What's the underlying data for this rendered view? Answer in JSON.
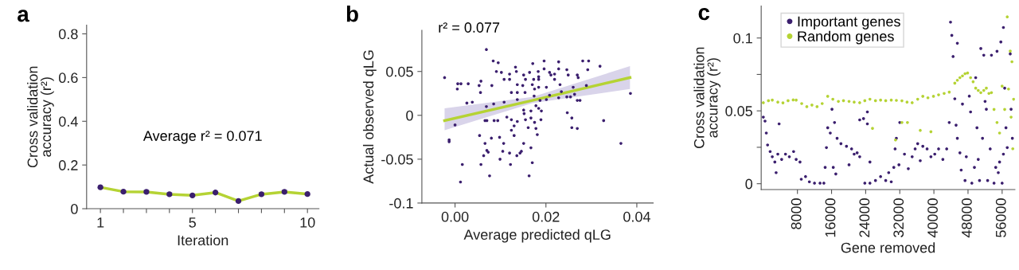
{
  "chart_data": [
    {
      "type": "line",
      "title": "a",
      "xlabel": "Iteration",
      "ylabel": "Cross validation\naccuracy (r²)",
      "annotations": [
        "Average r² = 0.071"
      ],
      "x": [
        1,
        2,
        3,
        4,
        5,
        6,
        7,
        8,
        9,
        10
      ],
      "xlim": [
        0.4,
        10.5
      ],
      "xticks": [
        1,
        {
          "value": 2,
          "label": null
        },
        {
          "value": 3,
          "label": null
        },
        {
          "value": 4,
          "label": null
        },
        5,
        {
          "value": 6,
          "label": null
        },
        {
          "value": 7,
          "label": null
        },
        {
          "value": 8,
          "label": null
        },
        {
          "value": 9,
          "label": null
        },
        10
      ],
      "ylim": [
        0,
        0.84
      ],
      "yticks": [
        0,
        0.2,
        0.4,
        0.6,
        0.8
      ],
      "grid": false,
      "legend": false,
      "series": [
        {
          "color": "#b5d334",
          "marker": "none",
          "values": [
            0.098,
            0.078,
            0.077,
            0.066,
            0.061,
            0.074,
            0.035,
            0.066,
            0.077,
            0.067
          ]
        },
        {
          "type": "scatter",
          "color": "#3b1f6e",
          "marker": "circle",
          "values": [
            0.098,
            0.078,
            0.077,
            0.066,
            0.061,
            0.074,
            0.035,
            0.066,
            0.077,
            0.067
          ]
        }
      ]
    },
    {
      "type": "scatter",
      "title": "b",
      "xlabel": "Average predicted qLG",
      "ylabel": "Actual observed qLG",
      "annotations": [
        "r² = 0.077"
      ],
      "xlim": [
        -0.0073,
        0.0436
      ],
      "xticks": [
        {
          "value": 0,
          "label": "0.00"
        },
        {
          "value": 0.02,
          "label": "0.02"
        },
        {
          "value": 0.04,
          "label": "0.04"
        }
      ],
      "ylim": [
        -0.1,
        0.097
      ],
      "yticks": [
        -0.1,
        -0.05,
        0,
        0.05
      ],
      "grid": false,
      "legend": false,
      "series": [
        {
          "color": "#3b1f6e",
          "marker": "circle",
          "x": [
            -0.0023,
            0.0006,
            0.0005,
            0,
            -0.0013,
            -0.0013,
            0.0016,
            0.0012,
            0.0026,
            0.0038,
            0.0013,
            0.0029,
            0.0053,
            0.0057,
            0.0056,
            0.0069,
            0.0084,
            0.0095,
            0.0069,
            0.0066,
            0.007,
            0.0054,
            0.0066,
            0.007,
            0.0073,
            0.0063,
            0.0057,
            0.0076,
            0.0081,
            0.0085,
            0.0086,
            0.0094,
            0.008,
            0.0098,
            0.0107,
            0.0099,
            0.0105,
            0.0091,
            0.0102,
            0.0108,
            0.012,
            0.0108,
            0.0114,
            0.0122,
            0.0124,
            0.012,
            0.0136,
            0.0143,
            0.0146,
            0.0151,
            0.013,
            0.0124,
            0.013,
            0.0137,
            0.0133,
            0.0135,
            0.012,
            0.0137,
            0.0124,
            0.0137,
            0.0137,
            0.0151,
            0.0155,
            0.0149,
            0.0154,
            0.0151,
            0.0152,
            0.0155,
            0.0161,
            0.0167,
            0.0167,
            0.0167,
            0.017,
            0.0163,
            0.0171,
            0.0164,
            0.0173,
            0.017,
            0.0175,
            0.0174,
            0.0178,
            0.0184,
            0.0175,
            0.0178,
            0.0181,
            0.0183,
            0.0184,
            0.0184,
            0.0184,
            0.0187,
            0.019,
            0.0189,
            0.0196,
            0.0196,
            0.0201,
            0.0201,
            0.0208,
            0.0211,
            0.0208,
            0.0219,
            0.0219,
            0.0228,
            0.0228,
            0.0231,
            0.0234,
            0.0228,
            0.0246,
            0.0249,
            0.0246,
            0.0254,
            0.0247,
            0.0257,
            0.026,
            0.0263,
            0.0257,
            0.0269,
            0.0269,
            0.0271,
            0.0269,
            0.0275,
            0.0281,
            0.0294,
            0.0292,
            0.0289,
            0.0319,
            0.0327,
            0.0365,
            0.0386
          ],
          "values": [
            0.043,
            0.036,
            0.03,
            -0.011,
            -0.028,
            -0.03,
            -0.056,
            -0.076,
            0.014,
            0.015,
            0.036,
            0.036,
            0.034,
            0.039,
            0.026,
            0.075,
            0.062,
            0.06,
            0.01,
            -0.006,
            -0.006,
            -0.023,
            -0.032,
            -0.04,
            -0.042,
            -0.046,
            -0.056,
            -0.069,
            0.034,
            0.013,
            -0.006,
            -0.006,
            -0.026,
            -0.025,
            -0.032,
            -0.05,
            -0.041,
            0.05,
            0.049,
            0.041,
            0.047,
            0.015,
            -0.002,
            -0.056,
            -0.005,
            -0.043,
            -0.046,
            -0.043,
            -0.041,
            -0.032,
            -0.023,
            -0.017,
            -0.012,
            -0.007,
            0.055,
            0.05,
            0.041,
            0.035,
            0.026,
            0.026,
            0.018,
            0.046,
            0.041,
            0.034,
            0.026,
            0.006,
            0.002,
            -0.005,
            -0.014,
            -0.003,
            0.005,
            -0.037,
            -0.054,
            -0.069,
            0.059,
            0.049,
            0.041,
            0.035,
            0.03,
            0.022,
            0.011,
            0.008,
            -0.008,
            -0.015,
            -0.022,
            0.05,
            0.044,
            0.041,
            0.032,
            0.017,
            0.005,
            -0.005,
            0.062,
            0.053,
            0.032,
            0.018,
            0.049,
            0.046,
            0.023,
            0.047,
            0.041,
            0.061,
            0.053,
            0.035,
            0.027,
            0.02,
            0.052,
            0.046,
            0.021,
            0.021,
            0.003,
            -0.003,
            0.032,
            0.024,
            -0.014,
            -0.015,
            0.046,
            0.043,
            0.017,
            0.017,
            0.062,
            0.062,
            0.052,
            0.034,
            0.056,
            -0.006,
            -0.032,
            0.025
          ]
        },
        {
          "type": "line",
          "color": "#b5d334",
          "marker": "none",
          "x": [
            -0.0023,
            0.017,
            0.0385
          ],
          "values": [
            -0.006,
            0.017,
            0.043
          ],
          "lower": [
            -0.017,
            0.014,
            0.03
          ],
          "upper": [
            0.008,
            0.021,
            0.056
          ]
        }
      ]
    },
    {
      "type": "scatter",
      "title": "c",
      "xlabel": "Gene removed",
      "ylabel": "Cross validation\naccuracy (r²)",
      "xlim": [
        -500,
        59000
      ],
      "xticks": [
        8000,
        16000,
        24000,
        32000,
        40000,
        48000,
        56000
      ],
      "ylim": [
        -0.004,
        0.122
      ],
      "yticks": [
        0,
        {
          "value": 0.025,
          "label": null
        },
        0.05,
        {
          "value": 0.075,
          "label": null
        },
        0.1
      ],
      "grid": false,
      "legend": "top left",
      "series": [
        {
          "name": "Important genes",
          "color": "#3b1f6e",
          "marker": "circle",
          "x": [
            0,
            400,
            700,
            1000,
            1600,
            2100,
            2700,
            3000,
            3400,
            3700,
            4300,
            5200,
            6100,
            7100,
            7700,
            8600,
            8900,
            9900,
            10800,
            12000,
            13300,
            14200,
            14500,
            14800,
            15100,
            15700,
            16100,
            16400,
            17000,
            16700,
            17300,
            18200,
            19500,
            20700,
            21300,
            22000,
            22600,
            20100,
            22600,
            23500,
            24400,
            23800,
            25000,
            25000,
            24400,
            26300,
            27500,
            28700,
            30000,
            29400,
            30600,
            30900,
            31200,
            31800,
            32000,
            33100,
            34000,
            34900,
            35600,
            36200,
            36800,
            37400,
            38400,
            39300,
            40200,
            41100,
            42100,
            43000,
            43600,
            43900,
            44200,
            44500,
            44900,
            45200,
            45500,
            45500,
            46100,
            46400,
            46700,
            47300,
            47600,
            48300,
            48600,
            48900,
            49500,
            49800,
            50100,
            50400,
            50700,
            51000,
            51400,
            51700,
            52000,
            52300,
            52600,
            53200,
            53500,
            54100,
            54500,
            54800,
            55100,
            55400,
            55700,
            56000,
            56300,
            56300,
            56600,
            56900,
            57200,
            57900,
            58100,
            58400
          ],
          "values": [
            0.0457,
            0.043,
            0.0348,
            0.0266,
            0.0221,
            0.0185,
            0.0149,
            0.0076,
            0.0203,
            0.0411,
            0.0167,
            0.0203,
            0.0185,
            0.0221,
            0.0167,
            0.0149,
            0.0031,
            0.0049,
            0.0013,
            0.0004,
            0.0004,
            0.0004,
            0.0112,
            0.0248,
            0.0384,
            0.0348,
            0.0511,
            0.0112,
            0.0067,
            0.042,
            0.0312,
            0.0275,
            0.0257,
            0.0239,
            0.0203,
            0.0212,
            0.0185,
            0.013,
            0.0438,
            0.0447,
            0.0411,
            0.0004,
            0.0004,
            0.0149,
            0.0493,
            0.0022,
            0.0049,
            0.0022,
            0.0013,
            0.0076,
            0.0112,
            0.0239,
            0.0312,
            0.013,
            0.042,
            0.0203,
            0.0103,
            0.0185,
            0.0239,
            0.0275,
            0.0158,
            0.0257,
            0.0239,
            0.0185,
            0.0203,
            0.0239,
            0.0167,
            0.0239,
            0.042,
            0.1109,
            0.1018,
            0.0873,
            0.0583,
            0.0402,
            0.0312,
            0.0964,
            0.0212,
            0.0094,
            0.0547,
            0.0022,
            0.0185,
            0.0601,
            0.0493,
            0.0004,
            0.0112,
            0.0728,
            0.0384,
            0.0167,
            0.0022,
            0.0928,
            0.0312,
            0.0882,
            0.0565,
            0.0511,
            0.0022,
            0.0239,
            0.0882,
            0.0004,
            0.0112,
            0.0909,
            0.0076,
            0.0149,
            0.0973,
            0.0004,
            0.1072,
            0.0203,
            0.0656,
            0.0384,
            0.0248,
            0.0891,
            0.0511,
            0.0312
          ]
        },
        {
          "name": "Random genes",
          "color": "#b5d334",
          "marker": "circle",
          "x": [
            0,
            1200,
            2100,
            3400,
            4600,
            5800,
            7000,
            7700,
            9000,
            10200,
            11400,
            12600,
            13800,
            15100,
            16300,
            17600,
            18800,
            20100,
            21300,
            22600,
            23800,
            25000,
            26300,
            27500,
            28700,
            30000,
            31200,
            32500,
            33700,
            34900,
            36200,
            37400,
            38600,
            39900,
            41100,
            42400,
            43600,
            44900,
            45500,
            46100,
            46700,
            47300,
            47900,
            48600,
            49200,
            49800,
            50400,
            51000,
            51700,
            52300,
            52900,
            53500,
            54100,
            54800,
            55400,
            56000,
            56600,
            57200,
            57500,
            57900,
            58100,
            58300,
            58500,
            58700,
            25600,
            32500,
            33800,
            36800,
            39300,
            31000
          ],
          "values": [
            0.0556,
            0.057,
            0.0574,
            0.056,
            0.0555,
            0.057,
            0.0575,
            0.0574,
            0.055,
            0.0529,
            0.054,
            0.0529,
            0.055,
            0.06,
            0.058,
            0.0565,
            0.057,
            0.0565,
            0.056,
            0.0556,
            0.057,
            0.058,
            0.057,
            0.0574,
            0.057,
            0.0574,
            0.0572,
            0.0569,
            0.056,
            0.0556,
            0.058,
            0.06,
            0.059,
            0.06,
            0.061,
            0.062,
            0.0629,
            0.069,
            0.071,
            0.0728,
            0.074,
            0.0755,
            0.076,
            0.0728,
            0.07,
            0.0656,
            0.064,
            0.0625,
            0.064,
            0.0656,
            0.062,
            0.0625,
            0.051,
            0.042,
            0.0348,
            0.067,
            0.051,
            0.1145,
            0.065,
            0.091,
            0.0457,
            0.0837,
            0.024,
            0.058,
            0.038,
            0.042,
            0.042,
            0.0366,
            0.0357,
            0.03
          ]
        }
      ]
    }
  ]
}
